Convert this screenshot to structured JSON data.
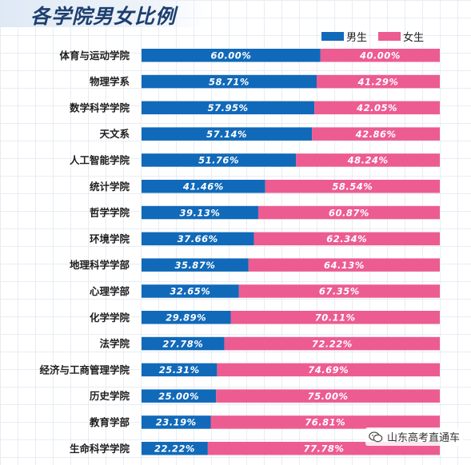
{
  "title": "各学院男女比例",
  "colors": {
    "male": "#1169b9",
    "female": "#ec5c91",
    "text": "#1e1e1e"
  },
  "legend": [
    {
      "name": "男生",
      "color": "#1169b9"
    },
    {
      "name": "女生",
      "color": "#ec5c91"
    }
  ],
  "chart_data": {
    "type": "bar",
    "orientation": "horizontal",
    "stacked": true,
    "title": "各学院男女比例",
    "categories": [
      "体育与运动学院",
      "物理学系",
      "数学科学学院",
      "天文系",
      "人工智能学院",
      "统计学院",
      "哲学学院",
      "环境学院",
      "地理科学学部",
      "心理学部",
      "化学学院",
      "法学院",
      "经济与工商管理学院",
      "历史学院",
      "教育学部",
      "生命科学学院"
    ],
    "series": [
      {
        "name": "男生",
        "values": [
          60.0,
          58.71,
          57.95,
          57.14,
          51.76,
          41.46,
          39.13,
          37.66,
          35.87,
          32.65,
          29.89,
          27.78,
          25.31,
          25.0,
          23.19,
          22.22
        ]
      },
      {
        "name": "女生",
        "values": [
          40.0,
          41.29,
          42.05,
          42.86,
          48.24,
          58.54,
          60.87,
          62.34,
          64.13,
          67.35,
          70.11,
          72.22,
          74.69,
          75.0,
          76.81,
          77.78
        ]
      }
    ],
    "value_labels": {
      "男生": [
        "60.00%",
        "58.71%",
        "57.95%",
        "57.14%",
        "51.76%",
        "41.46%",
        "39.13%",
        "37.66%",
        "35.87%",
        "32.65%",
        "29.89%",
        "27.78%",
        "25.31%",
        "25.00%",
        "23.19%",
        "22.22%"
      ],
      "女生": [
        "40.00%",
        "41.29%",
        "42.05%",
        "42.86%",
        "48.24%",
        "58.54%",
        "60.87%",
        "62.34%",
        "64.13%",
        "67.35%",
        "70.11%",
        "72.22%",
        "74.69%",
        "75.00%",
        "76.81%",
        "77.78%"
      ]
    },
    "xlim": [
      0,
      100
    ],
    "legend_position": "top-right",
    "grid": false
  },
  "watermark": {
    "text": "山东高考直通车",
    "icon": "wechat-icon"
  }
}
